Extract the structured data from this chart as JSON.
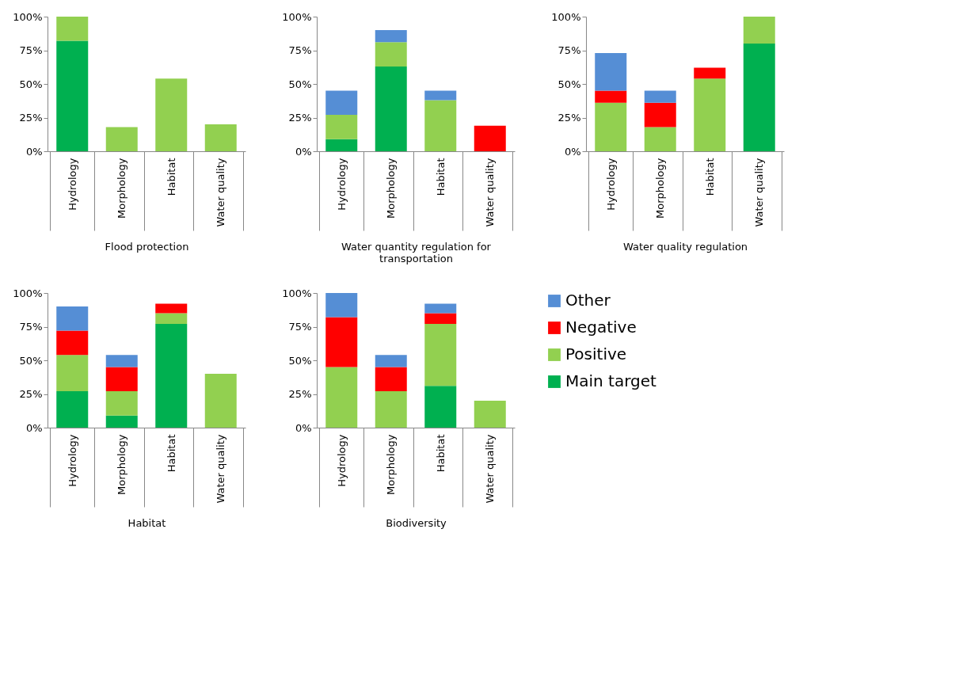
{
  "chart_data": [
    {
      "type": "bar",
      "stacked": true,
      "xlabel": "Flood protection",
      "categories": [
        "Hydrology",
        "Morphology",
        "Habitat",
        "Water quality"
      ],
      "ylim": [
        0,
        100
      ],
      "yticks": [
        {
          "value": 0,
          "label": "0%"
        },
        {
          "value": 25,
          "label": "25%"
        },
        {
          "value": 50,
          "label": "50%"
        },
        {
          "value": 75,
          "label": "75%"
        },
        {
          "value": 100,
          "label": "100%"
        }
      ],
      "grid": false,
      "legend": false,
      "series": [
        {
          "color": "#00b050",
          "values": [
            82,
            null,
            null,
            null
          ]
        },
        {
          "color": "#92d050",
          "values": [
            18,
            18,
            54,
            20
          ]
        },
        {
          "color": "#ff0000",
          "values": [
            null,
            null,
            null,
            null
          ]
        },
        {
          "color": "#558ed5",
          "values": [
            null,
            null,
            null,
            null
          ]
        }
      ]
    },
    {
      "type": "bar",
      "stacked": true,
      "xlabel": "Water quantity regulation for transportation",
      "categories": [
        "Hydrology",
        "Morphology",
        "Habitat",
        "Water quality"
      ],
      "ylim": [
        0,
        100
      ],
      "yticks": [
        {
          "value": 0,
          "label": "0%"
        },
        {
          "value": 25,
          "label": "25%"
        },
        {
          "value": 50,
          "label": "50%"
        },
        {
          "value": 75,
          "label": "75%"
        },
        {
          "value": 100,
          "label": "100%"
        }
      ],
      "grid": false,
      "legend": false,
      "series": [
        {
          "color": "#00b050",
          "values": [
            9,
            63,
            null,
            null
          ]
        },
        {
          "color": "#92d050",
          "values": [
            18,
            18,
            38,
            null
          ]
        },
        {
          "color": "#ff0000",
          "values": [
            null,
            null,
            null,
            19
          ]
        },
        {
          "color": "#558ed5",
          "values": [
            18,
            9,
            7,
            null
          ]
        }
      ]
    },
    {
      "type": "bar",
      "stacked": true,
      "xlabel": "Water quality regulation",
      "categories": [
        "Hydrology",
        "Morphology",
        "Habitat",
        "Water quality"
      ],
      "ylim": [
        0,
        100
      ],
      "yticks": [
        {
          "value": 0,
          "label": "0%"
        },
        {
          "value": 25,
          "label": "25%"
        },
        {
          "value": 50,
          "label": "50%"
        },
        {
          "value": 75,
          "label": "75%"
        },
        {
          "value": 100,
          "label": "100%"
        }
      ],
      "grid": false,
      "legend": false,
      "series": [
        {
          "color": "#00b050",
          "values": [
            null,
            null,
            null,
            80
          ]
        },
        {
          "color": "#92d050",
          "values": [
            36,
            18,
            54,
            20
          ]
        },
        {
          "color": "#ff0000",
          "values": [
            9,
            18,
            8,
            null
          ]
        },
        {
          "color": "#558ed5",
          "values": [
            28,
            9,
            null,
            null
          ]
        }
      ]
    },
    {
      "type": "bar",
      "stacked": true,
      "xlabel": "Habitat",
      "categories": [
        "Hydrology",
        "Morphology",
        "Habitat",
        "Water quality"
      ],
      "ylim": [
        0,
        100
      ],
      "yticks": [
        {
          "value": 0,
          "label": "0%"
        },
        {
          "value": 25,
          "label": "25%"
        },
        {
          "value": 50,
          "label": "50%"
        },
        {
          "value": 75,
          "label": "75%"
        },
        {
          "value": 100,
          "label": "100%"
        }
      ],
      "grid": false,
      "legend": false,
      "series": [
        {
          "color": "#00b050",
          "values": [
            27,
            9,
            77,
            null
          ]
        },
        {
          "color": "#92d050",
          "values": [
            27,
            18,
            8,
            40
          ]
        },
        {
          "color": "#ff0000",
          "values": [
            18,
            18,
            7,
            null
          ]
        },
        {
          "color": "#558ed5",
          "values": [
            18,
            9,
            null,
            null
          ]
        }
      ]
    },
    {
      "type": "bar",
      "stacked": true,
      "xlabel": "Biodiversity",
      "categories": [
        "Hydrology",
        "Morphology",
        "Habitat",
        "Water quality"
      ],
      "ylim": [
        0,
        100
      ],
      "yticks": [
        {
          "value": 0,
          "label": "0%"
        },
        {
          "value": 25,
          "label": "25%"
        },
        {
          "value": 50,
          "label": "50%"
        },
        {
          "value": 75,
          "label": "75%"
        },
        {
          "value": 100,
          "label": "100%"
        }
      ],
      "grid": false,
      "legend": "right",
      "series": [
        {
          "name": "Main target",
          "color": "#00b050",
          "values": [
            null,
            null,
            31,
            null
          ]
        },
        {
          "name": "Positive",
          "color": "#92d050",
          "values": [
            45,
            27,
            46,
            20
          ]
        },
        {
          "name": "Negative",
          "color": "#ff0000",
          "values": [
            37,
            18,
            8,
            null
          ]
        },
        {
          "name": "Other",
          "color": "#558ed5",
          "values": [
            18,
            9,
            7,
            null
          ]
        }
      ]
    }
  ]
}
